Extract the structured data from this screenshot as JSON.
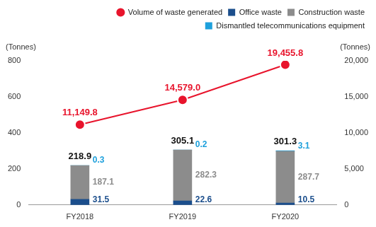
{
  "chart_data": {
    "type": "bar",
    "categories": [
      "FY2018",
      "FY2019",
      "FY2020"
    ],
    "stacked": true,
    "grid": false,
    "data_labels": true,
    "legend": "top-right",
    "y_label": "(Tonnes)",
    "y2_label": "(Tonnes)",
    "series": [
      {
        "name": "Office waste",
        "color": "#1b4e8c",
        "values": [
          31.5,
          22.6,
          10.5
        ]
      },
      {
        "name": "Construction waste",
        "color": "#8c8c8c",
        "values": [
          187.1,
          282.3,
          287.7
        ]
      },
      {
        "name": "Dismantled telecommunications equipment",
        "color": "#1ea0dc",
        "values": [
          0.3,
          0.2,
          3.1
        ]
      },
      {
        "name": "Volume of waste generated",
        "type": "line",
        "marker": "circle",
        "axis": "y2",
        "color": "#e8142c",
        "values": [
          11149.8,
          14579.0,
          19455.8
        ],
        "value_labels": [
          "11,149.8",
          "14,579.0",
          "19,455.8"
        ]
      }
    ],
    "totals": [
      218.9,
      305.1,
      301.3
    ],
    "ylim": [
      0,
      800
    ],
    "yticks": [
      0,
      200,
      400,
      600,
      800
    ],
    "y2lim": [
      0,
      20000
    ],
    "y2ticks": [
      0,
      {
        "value": 5000,
        "label": "5,000"
      },
      {
        "value": 10000,
        "label": "10,000"
      },
      {
        "value": 15000,
        "label": "15,000"
      },
      {
        "value": 20000,
        "label": "20,000"
      }
    ]
  }
}
